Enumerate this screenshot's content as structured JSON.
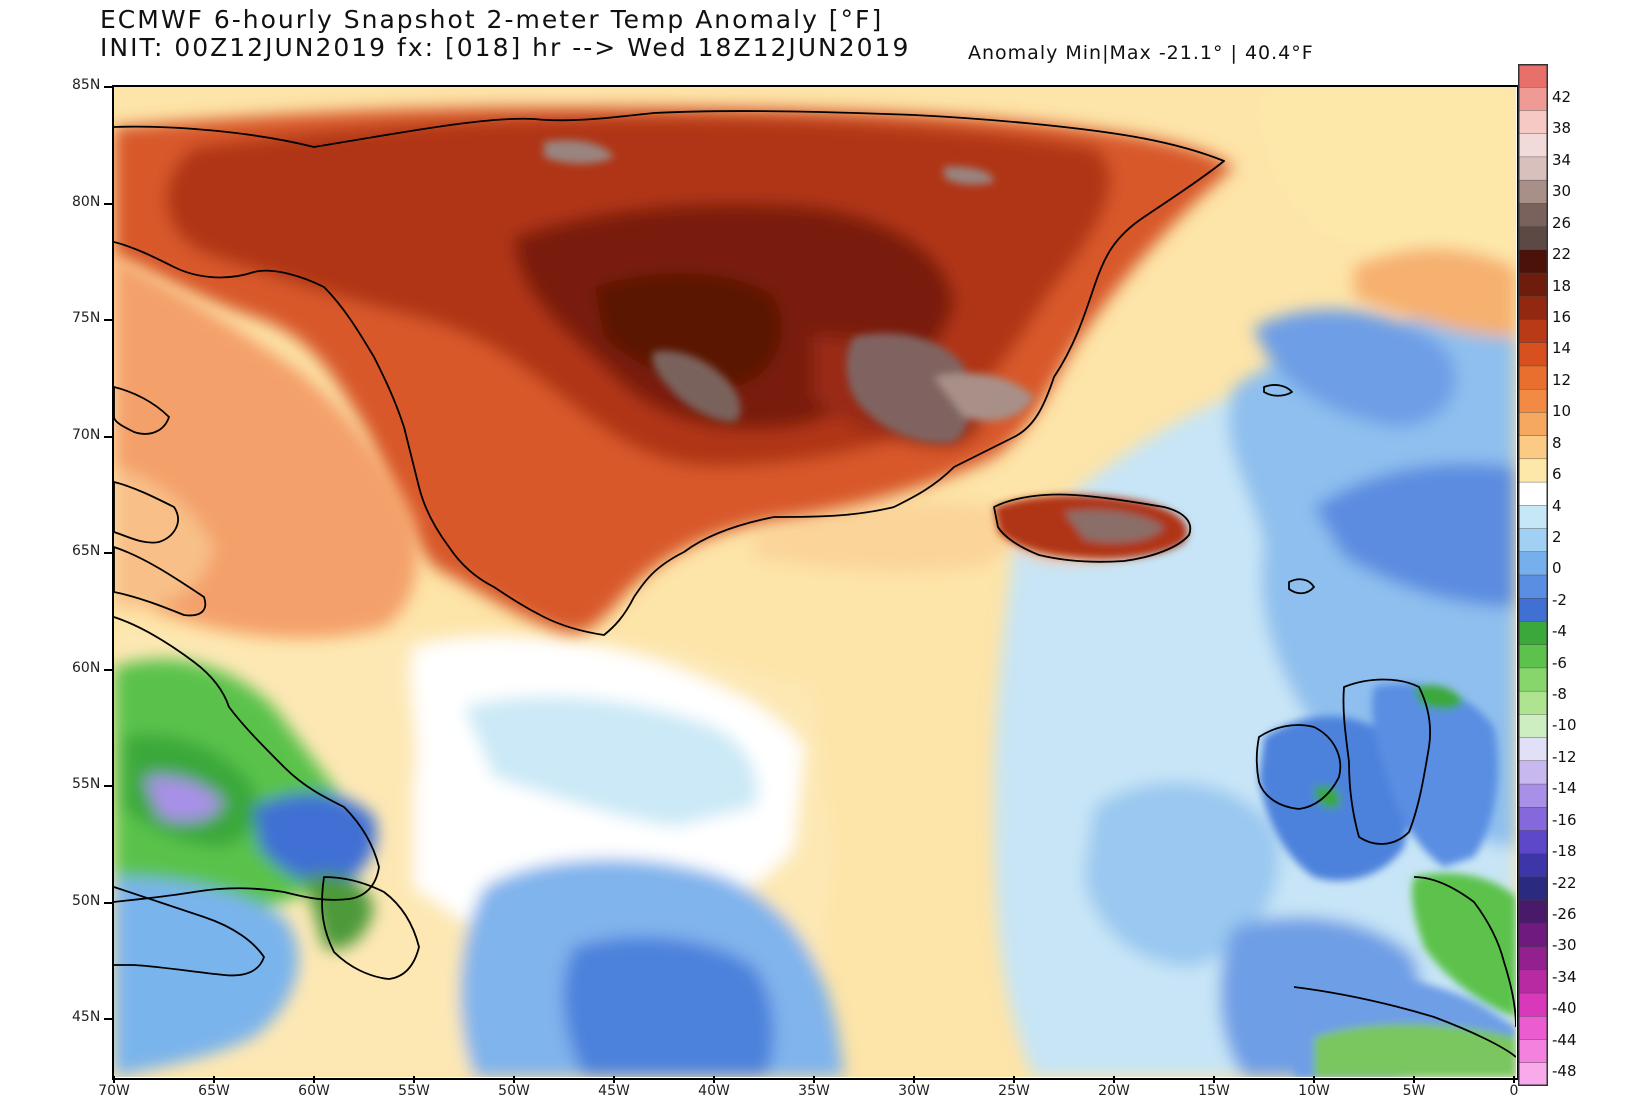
{
  "header": {
    "title_line1": "ECMWF 6-hourly Snapshot 2-meter Temp Anomaly [°F]",
    "title_line2": "INIT: 00Z12JUN2019 fx: [018] hr --> Wed 18Z12JUN2019",
    "minmax": "Anomaly Min|Max -21.1° | 40.4°F"
  },
  "axes": {
    "lat_labels": [
      "85N",
      "80N",
      "75N",
      "70N",
      "65N",
      "60N",
      "55N",
      "50N",
      "45N"
    ],
    "lon_labels": [
      "70W",
      "65W",
      "60W",
      "55W",
      "50W",
      "45W",
      "40W",
      "35W",
      "30W",
      "25W",
      "20W",
      "15W",
      "10W",
      "5W",
      "0"
    ]
  },
  "colorbar": {
    "labels": [
      "42",
      "38",
      "34",
      "30",
      "26",
      "22",
      "18",
      "16",
      "14",
      "12",
      "10",
      "8",
      "6",
      "4",
      "2",
      "0",
      "-2",
      "-4",
      "-6",
      "-8",
      "-10",
      "-12",
      "-14",
      "-16",
      "-18",
      "-22",
      "-26",
      "-30",
      "-34",
      "-40",
      "-44",
      "-48"
    ],
    "colors": [
      "#e8706a",
      "#ef9a94",
      "#f6c9c4",
      "#f2dada",
      "#d8c0bc",
      "#a89088",
      "#7a625c",
      "#5c4844",
      "#4a1208",
      "#6e1c0c",
      "#922810",
      "#b83a16",
      "#d8501e",
      "#e86f2e",
      "#f28a44",
      "#f6a860",
      "#fbca85",
      "#fde8aa",
      "#ffffff",
      "#c6e8f6",
      "#a0d0f4",
      "#76b0ec",
      "#5a8ee2",
      "#4070d4",
      "#3aa83a",
      "#5cc24c",
      "#86d66c",
      "#aee490",
      "#cdeec0",
      "#e2e0f6",
      "#c8b8f0",
      "#a890e8",
      "#8468dc",
      "#5c48c8",
      "#3e36a8",
      "#2a2a80",
      "#4a1a6a",
      "#6e1a7e",
      "#92208e",
      "#b82aa2",
      "#d838ba",
      "#ea5cd0",
      "#f282de",
      "#f8aaea"
    ]
  }
}
